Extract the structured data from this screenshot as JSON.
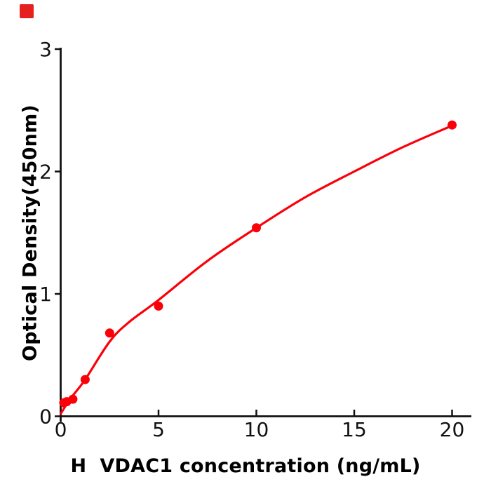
{
  "window": {
    "background": "#ffffff"
  },
  "corner_marker": {
    "color": "#e4211f"
  },
  "chart_data": {
    "type": "scatter",
    "title": "",
    "xlabel": "H  VDAC1 concentration (ng/mL)",
    "ylabel": "Optical Density(450nm)",
    "xlim": [
      0,
      21.2
    ],
    "ylim": [
      0,
      3
    ],
    "xticks": [
      0,
      5,
      10,
      15,
      20
    ],
    "yticks": [
      0,
      1,
      2,
      3
    ],
    "grid": false,
    "legend": "none",
    "axis_color": "#111111",
    "tick_label_color": "#111111",
    "series": [
      {
        "name": "standard-points",
        "type": "scatter",
        "color": "#fa0008",
        "marker": "circle",
        "points": [
          [
            0.156,
            0.11
          ],
          [
            0.312,
            0.12
          ],
          [
            0.625,
            0.14
          ],
          [
            1.25,
            0.3
          ],
          [
            2.5,
            0.68
          ],
          [
            5,
            0.9
          ],
          [
            10,
            1.54
          ],
          [
            20,
            2.38
          ]
        ]
      },
      {
        "name": "fitted-curve",
        "type": "line",
        "color": "#fa0008",
        "points": [
          [
            0,
            0.02
          ],
          [
            0.312,
            0.1
          ],
          [
            0.625,
            0.17
          ],
          [
            1.25,
            0.3
          ],
          [
            2.5,
            0.61
          ],
          [
            3.5,
            0.77
          ],
          [
            5,
            0.95
          ],
          [
            7.5,
            1.27
          ],
          [
            10,
            1.54
          ],
          [
            12.5,
            1.79
          ],
          [
            15,
            2.0
          ],
          [
            17.5,
            2.2
          ],
          [
            20,
            2.375
          ]
        ]
      }
    ]
  }
}
